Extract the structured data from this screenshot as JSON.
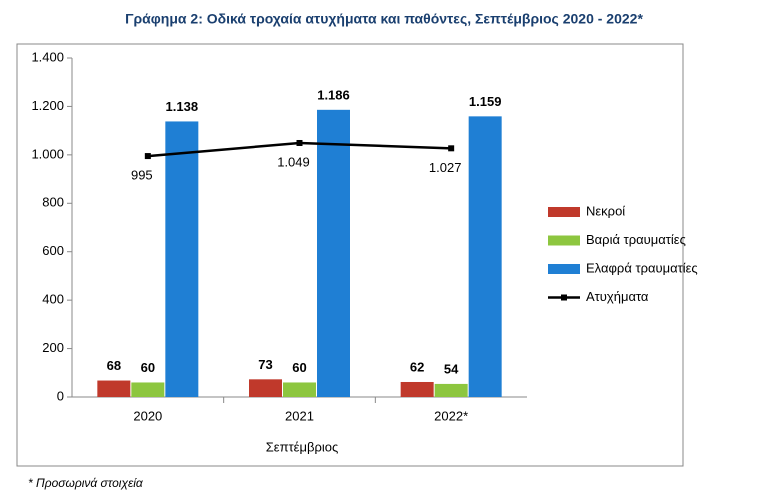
{
  "chart_data": {
    "type": "bar",
    "title": "Γράφημα 2: Οδικά τροχαία ατυχήματα και παθόντες, Σεπτέμβριος 2020 - 2022*",
    "xlabel": "Σεπτέμβριος",
    "note": "* Προσωρινά στοιχεία",
    "categories": [
      "2020",
      "2021",
      "2022*"
    ],
    "series": [
      {
        "name": "Νεκροί",
        "color": "#c0392b",
        "values": [
          68,
          73,
          62
        ]
      },
      {
        "name": "Βαριά τραυματίες",
        "color": "#8dc63f",
        "values": [
          60,
          60,
          54
        ]
      },
      {
        "name": "Ελαφρά τραυματίες",
        "color": "#1f7fd4",
        "values": [
          1138,
          1186,
          1159
        ],
        "value_labels": [
          "1.138",
          "1.186",
          "1.159"
        ]
      },
      {
        "name": "Ατυχήματα",
        "type": "line",
        "color": "#000000",
        "values": [
          995,
          1049,
          1027
        ],
        "value_labels": [
          "995",
          "1.049",
          "1.027"
        ]
      }
    ],
    "ylim": [
      0,
      1400
    ],
    "yticks": [
      0,
      200,
      400,
      600,
      800,
      {
        "value": 1000,
        "label": "1.000"
      },
      {
        "value": 1200,
        "label": "1.200"
      },
      {
        "value": 1400,
        "label": "1.400"
      }
    ],
    "grid": false,
    "legend": "right"
  }
}
